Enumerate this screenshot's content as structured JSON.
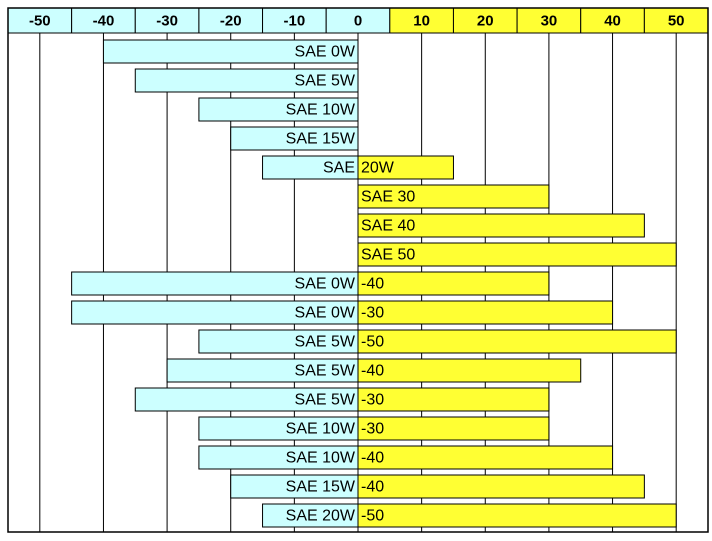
{
  "chart_data": {
    "type": "range-bar",
    "xlim": [
      -55,
      55
    ],
    "xticks": [
      -50,
      -40,
      -30,
      -20,
      -10,
      0,
      10,
      20,
      30,
      40,
      50
    ],
    "grid": true,
    "cold_color": "#ccffff",
    "warm_color": "#ffff33",
    "bars": [
      {
        "winter": "SAE 0W",
        "low": -40,
        "high": 0
      },
      {
        "winter": "SAE 5W",
        "low": -35,
        "high": 0
      },
      {
        "winter": "SAE 10W",
        "low": -25,
        "high": 0
      },
      {
        "winter": "SAE 15W",
        "low": -20,
        "high": 0
      },
      {
        "winter": "SAE",
        "summer": "20W",
        "low": -15,
        "high": 15
      },
      {
        "summer": "SAE 30",
        "low": 0,
        "high": 30
      },
      {
        "summer": "SAE 40",
        "low": 0,
        "high": 45
      },
      {
        "summer": "SAE 50",
        "low": 0,
        "high": 50
      },
      {
        "winter": "SAE 0W",
        "summer": "-40",
        "low": -45,
        "high": 30
      },
      {
        "winter": "SAE 0W",
        "summer": "-30",
        "low": -45,
        "high": 40
      },
      {
        "winter": "SAE 5W",
        "summer": "-50",
        "low": -25,
        "high": 50
      },
      {
        "winter": "SAE 5W",
        "summer": "-40",
        "low": -30,
        "high": 35
      },
      {
        "winter": "SAE 5W",
        "summer": "-30",
        "low": -35,
        "high": 30
      },
      {
        "winter": "SAE 10W",
        "summer": "-30",
        "low": -25,
        "high": 30
      },
      {
        "winter": "SAE 10W",
        "summer": "-40",
        "low": -25,
        "high": 40
      },
      {
        "winter": "SAE 15W",
        "summer": "-40",
        "low": -20,
        "high": 45
      },
      {
        "winter": "SAE 20W",
        "summer": "-50",
        "low": -15,
        "high": 50
      }
    ]
  }
}
